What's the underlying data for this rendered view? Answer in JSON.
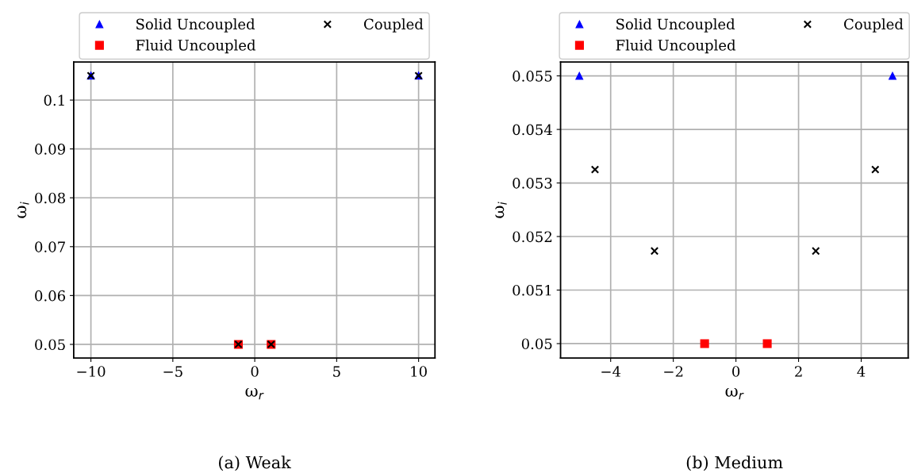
{
  "chart_data": [
    {
      "type": "scatter",
      "xlabel": "ω$_{r}$",
      "ylabel": "ω$_{i}$",
      "xlim": [
        -11.05,
        11.0
      ],
      "ylim": [
        0.0472,
        0.1078
      ],
      "xticks": [
        {
          "value": -10,
          "label": "−10"
        },
        {
          "value": -5,
          "label": "−5"
        },
        0,
        5,
        10
      ],
      "yticks": [
        0.05,
        0.06,
        0.07,
        0.08,
        0.09,
        0.1
      ],
      "grid": true,
      "legend": "top",
      "series": [
        {
          "name": "Solid Uncoupled",
          "color": "#0000ff",
          "marker": "triangle",
          "x": [
            -10,
            10
          ],
          "values": [
            0.105,
            0.105
          ]
        },
        {
          "name": "Fluid Uncoupled",
          "color": "#ff0000",
          "marker": "square",
          "x": [
            -1,
            1
          ],
          "values": [
            0.05,
            0.05
          ]
        },
        {
          "name": "Coupled",
          "color": "#000000",
          "marker": "cross",
          "x": [
            -10,
            10,
            -1,
            1
          ],
          "values": [
            0.105,
            0.105,
            0.05,
            0.05
          ]
        }
      ],
      "annotations": [
        "(a) Weak"
      ]
    },
    {
      "type": "scatter",
      "xlabel": "ω$_{r}$",
      "ylabel": "ω$_{i}$",
      "xlim": [
        -5.6,
        5.5
      ],
      "ylim": [
        0.04973,
        0.05526
      ],
      "xticks": [
        {
          "value": -4,
          "label": "−4"
        },
        {
          "value": -2,
          "label": "−2"
        },
        0,
        2,
        4
      ],
      "yticks": [
        0.05,
        0.051,
        0.052,
        0.053,
        0.054,
        0.055
      ],
      "grid": true,
      "legend": "top",
      "series": [
        {
          "name": "Solid Uncoupled",
          "color": "#0000ff",
          "marker": "triangle",
          "x": [
            -5,
            5
          ],
          "values": [
            0.055,
            0.055
          ]
        },
        {
          "name": "Fluid Uncoupled",
          "color": "#ff0000",
          "marker": "square",
          "x": [
            -1,
            1
          ],
          "values": [
            0.05,
            0.05
          ]
        },
        {
          "name": "Coupled",
          "color": "#000000",
          "marker": "cross",
          "x": [
            -4.5,
            -2.6,
            2.55,
            4.45
          ],
          "values": [
            0.05325,
            0.05173,
            0.05173,
            0.05325
          ]
        }
      ],
      "annotations": [
        "(b) Medium"
      ]
    }
  ]
}
